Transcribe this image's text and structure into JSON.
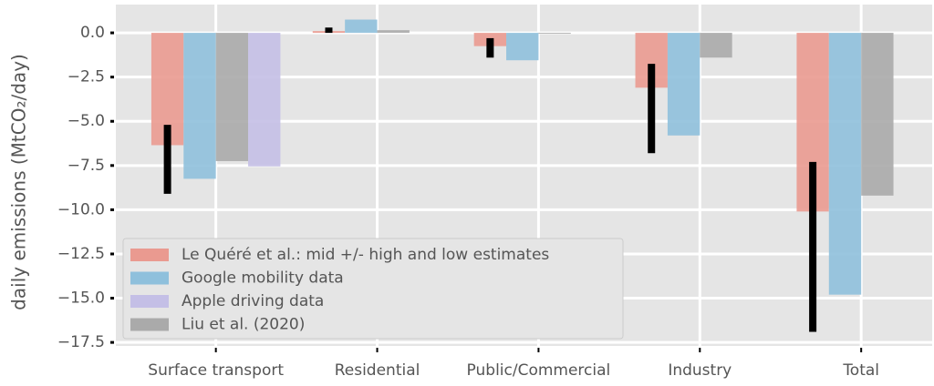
{
  "chart_data": {
    "type": "bar",
    "ylabel": "daily emissions (MtCO₂/day)",
    "categories": [
      "Surface transport",
      "Residential",
      "Public/Commercial",
      "Industry",
      "Total"
    ],
    "series": [
      {
        "name": "Le Quéré et al.: mid +/- high and low estimates",
        "color": "#ea9a90",
        "values": [
          -6.35,
          0.1,
          -0.75,
          -3.1,
          -10.1
        ],
        "high": [
          -5.2,
          0.3,
          -0.3,
          -1.75,
          -7.3
        ],
        "low": [
          -9.1,
          0.0,
          -1.4,
          -6.8,
          -16.9
        ]
      },
      {
        "name": "Google mobility data",
        "color": "#8fc0dc",
        "values": [
          -8.25,
          0.75,
          -1.55,
          -5.8,
          -14.8
        ]
      },
      {
        "name": "Apple driving data",
        "color": "#c4bfe6",
        "values": [
          -7.55,
          null,
          null,
          null,
          null
        ]
      },
      {
        "name": "Liu et al. (2020)",
        "color": "#aaaaaa",
        "values": [
          -7.25,
          0.15,
          -0.05,
          -1.4,
          -9.2
        ]
      }
    ],
    "ylim": [
      -17.7,
      1.6
    ],
    "yticks": [
      {
        "value": 0,
        "label": "0.0"
      },
      {
        "value": -2.5,
        "label": "−2.5"
      },
      {
        "value": -5,
        "label": "−5.0"
      },
      {
        "value": -7.5,
        "label": "−7.5"
      },
      {
        "value": -10,
        "label": "−10.0"
      },
      {
        "value": -12.5,
        "label": "−12.5"
      },
      {
        "value": -15,
        "label": "−15.0"
      },
      {
        "value": -17.5,
        "label": "−17.5"
      }
    ],
    "grid": true,
    "legend": "lower left"
  }
}
